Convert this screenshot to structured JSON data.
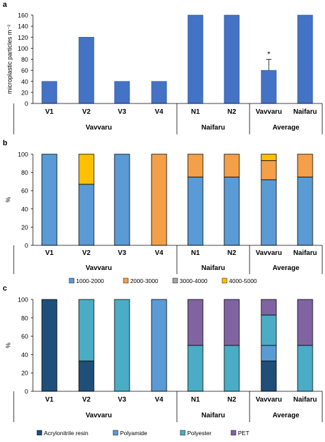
{
  "colors": {
    "blue": "#4472C4",
    "mid_blue": "#5B9BD5",
    "orange": "#F4A04A",
    "gray": "#A5A5A5",
    "yellow": "#FFC000",
    "navy": "#1F4E79",
    "teal": "#4BACC6",
    "purple": "#8064A2",
    "axis": "#000000",
    "grid": "#D9D9D9"
  },
  "chart_data": [
    {
      "panel": "a",
      "type": "bar",
      "ylabel": "microplastic particles m⁻²",
      "ylim": [
        0,
        160
      ],
      "yticks": [
        "0",
        "20",
        "40",
        "60",
        "80",
        "100",
        "120",
        "140",
        "160"
      ],
      "categories": [
        "V1",
        "V2",
        "V3",
        "V4",
        "N1",
        "N2",
        "Vavvaru",
        "Naifaru"
      ],
      "groups": [
        "Vavvaru",
        "Naifaru",
        "Average"
      ],
      "values": [
        40,
        120,
        40,
        40,
        160,
        160,
        60,
        160
      ],
      "error_bar": {
        "category": "Vavvaru",
        "upper": 80
      },
      "annotation": "*"
    },
    {
      "panel": "b",
      "type": "bar",
      "stacked": true,
      "ylabel": "%",
      "ylim": [
        0,
        100
      ],
      "yticks": [
        "0",
        "20",
        "40",
        "60",
        "80",
        "100"
      ],
      "categories": [
        "V1",
        "V2",
        "V3",
        "V4",
        "N1",
        "N2",
        "Vavvaru",
        "Naifaru"
      ],
      "groups": [
        "Vavvaru",
        "Naifaru",
        "Average"
      ],
      "series": [
        {
          "name": "1000-2000",
          "values": [
            100,
            67,
            100,
            0,
            75,
            75,
            72,
            75
          ]
        },
        {
          "name": "2000-3000",
          "values": [
            0,
            0,
            0,
            100,
            25,
            25,
            21,
            25
          ]
        },
        {
          "name": "3000-4000",
          "values": [
            0,
            0,
            0,
            0,
            0,
            0,
            0,
            0
          ]
        },
        {
          "name": "4000-5000",
          "values": [
            0,
            33,
            0,
            0,
            0,
            0,
            7,
            0
          ]
        }
      ],
      "legend_position": "bottom"
    },
    {
      "panel": "c",
      "type": "bar",
      "stacked": true,
      "ylabel": "%",
      "ylim": [
        0,
        100
      ],
      "yticks": [
        "0",
        "20",
        "40",
        "60",
        "80",
        "100"
      ],
      "categories": [
        "V1",
        "V2",
        "V3",
        "V4",
        "N1",
        "N2",
        "Vavvaru",
        "Naifaru"
      ],
      "groups": [
        "Vavvaru",
        "Naifaru",
        "Average"
      ],
      "series": [
        {
          "name": "Acrylonitrile resin",
          "values": [
            100,
            33,
            0,
            0,
            0,
            0,
            33,
            0
          ]
        },
        {
          "name": "Polyamide",
          "values": [
            0,
            0,
            0,
            100,
            0,
            0,
            17,
            0
          ]
        },
        {
          "name": "Polyester",
          "values": [
            0,
            67,
            100,
            0,
            50,
            50,
            33,
            50
          ]
        },
        {
          "name": "PET",
          "values": [
            0,
            0,
            0,
            0,
            50,
            50,
            17,
            50
          ]
        }
      ],
      "legend_position": "bottom"
    }
  ]
}
